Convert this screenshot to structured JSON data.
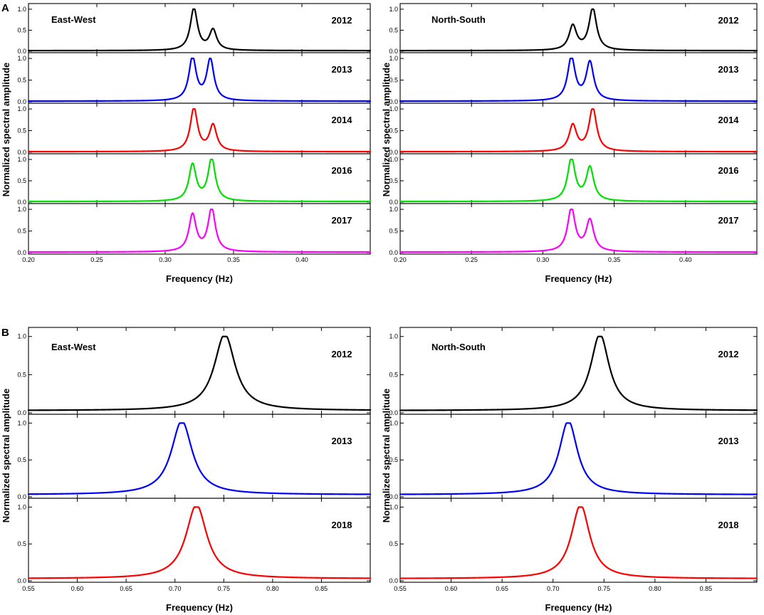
{
  "figure": {
    "panel_labels": [
      "A",
      "B"
    ]
  },
  "chart_data": [
    {
      "type": "line",
      "panel": "A",
      "subplot": "East-West",
      "direction_label": "East-West",
      "xlabel": "Frequency (Hz)",
      "ylabel": "Normalized spectral amplitude",
      "xlim": [
        0.2,
        0.45
      ],
      "ylim": [
        0,
        1.1
      ],
      "x_ticks": [
        0.2,
        0.25,
        0.3,
        0.35,
        0.4
      ],
      "x_tick_labels": [
        "0.20",
        "0.25",
        "0.30",
        "0.35",
        "0.40"
      ],
      "y_ticks": [
        0.0,
        0.5,
        1.0
      ],
      "y_tick_labels": [
        "0.0",
        "0.5",
        "1.0"
      ],
      "series": [
        {
          "name": "2012",
          "color": "#000000",
          "peaks": [
            {
              "f": 0.321,
              "a": 1.0,
              "w": 0.0032
            },
            {
              "f": 0.335,
              "a": 0.48,
              "w": 0.0032
            }
          ]
        },
        {
          "name": "2013",
          "color": "#0000ff",
          "peaks": [
            {
              "f": 0.32,
              "a": 1.0,
              "w": 0.0032
            },
            {
              "f": 0.333,
              "a": 0.95,
              "w": 0.0032
            }
          ]
        },
        {
          "name": "2014",
          "color": "#ff0000",
          "peaks": [
            {
              "f": 0.321,
              "a": 1.0,
              "w": 0.0032
            },
            {
              "f": 0.335,
              "a": 0.6,
              "w": 0.0032
            }
          ]
        },
        {
          "name": "2016",
          "color": "#00e000",
          "peaks": [
            {
              "f": 0.32,
              "a": 0.85,
              "w": 0.0032
            },
            {
              "f": 0.334,
              "a": 1.0,
              "w": 0.0032
            }
          ]
        },
        {
          "name": "2017",
          "color": "#ff00ff",
          "peaks": [
            {
              "f": 0.32,
              "a": 0.85,
              "w": 0.0032
            },
            {
              "f": 0.334,
              "a": 1.0,
              "w": 0.0032
            }
          ]
        }
      ]
    },
    {
      "type": "line",
      "panel": "A",
      "subplot": "North-South",
      "direction_label": "North-South",
      "xlabel": "Frequency (Hz)",
      "ylabel": "Normalized spectral amplitude",
      "xlim": [
        0.2,
        0.45
      ],
      "ylim": [
        0,
        1.1
      ],
      "x_ticks": [
        0.2,
        0.25,
        0.3,
        0.35,
        0.4
      ],
      "x_tick_labels": [
        "0.20",
        "0.25",
        "0.30",
        "0.35",
        "0.40"
      ],
      "y_ticks": [
        0.0,
        0.5,
        1.0
      ],
      "y_tick_labels": [
        "0.0",
        "0.5",
        "1.0"
      ],
      "series": [
        {
          "name": "2012",
          "color": "#000000",
          "peaks": [
            {
              "f": 0.321,
              "a": 0.58,
              "w": 0.0032
            },
            {
              "f": 0.335,
              "a": 1.0,
              "w": 0.0032
            }
          ]
        },
        {
          "name": "2013",
          "color": "#0000ff",
          "peaks": [
            {
              "f": 0.32,
              "a": 1.0,
              "w": 0.0032
            },
            {
              "f": 0.333,
              "a": 0.88,
              "w": 0.0032
            }
          ]
        },
        {
          "name": "2014",
          "color": "#ff0000",
          "peaks": [
            {
              "f": 0.321,
              "a": 0.6,
              "w": 0.0032
            },
            {
              "f": 0.335,
              "a": 1.0,
              "w": 0.0032
            }
          ]
        },
        {
          "name": "2016",
          "color": "#00e000",
          "peaks": [
            {
              "f": 0.32,
              "a": 1.0,
              "w": 0.0032
            },
            {
              "f": 0.333,
              "a": 0.78,
              "w": 0.0032
            }
          ]
        },
        {
          "name": "2017",
          "color": "#ff00ff",
          "peaks": [
            {
              "f": 0.32,
              "a": 1.0,
              "w": 0.0032
            },
            {
              "f": 0.333,
              "a": 0.72,
              "w": 0.0032
            }
          ]
        }
      ]
    },
    {
      "type": "line",
      "panel": "B",
      "subplot": "East-West",
      "direction_label": "East-West",
      "xlabel": "Frequency (Hz)",
      "ylabel": "Normalized spectral amplitude",
      "xlim": [
        0.55,
        0.9
      ],
      "ylim": [
        0,
        1.1
      ],
      "x_ticks": [
        0.55,
        0.6,
        0.65,
        0.7,
        0.75,
        0.8,
        0.85
      ],
      "x_tick_labels": [
        "0.55",
        "0.60",
        "0.65",
        "0.70",
        "0.75",
        "0.80",
        "0.85"
      ],
      "y_ticks": [
        0.0,
        0.5,
        1.0
      ],
      "y_tick_labels": [
        "0.0",
        "0.5",
        "1.0"
      ],
      "series": [
        {
          "name": "2012",
          "color": "#000000",
          "peaks": [
            {
              "f": 0.751,
              "a": 1.0,
              "w": 0.013
            }
          ]
        },
        {
          "name": "2013",
          "color": "#0000ff",
          "peaks": [
            {
              "f": 0.707,
              "a": 1.0,
              "w": 0.013
            }
          ]
        },
        {
          "name": "2018",
          "color": "#ff0000",
          "peaks": [
            {
              "f": 0.722,
              "a": 1.0,
              "w": 0.013
            }
          ]
        }
      ]
    },
    {
      "type": "line",
      "panel": "B",
      "subplot": "North-South",
      "direction_label": "North-South",
      "xlabel": "Frequency (Hz)",
      "ylabel": "Normalized spectral amplitude",
      "xlim": [
        0.55,
        0.9
      ],
      "ylim": [
        0,
        1.1
      ],
      "x_ticks": [
        0.55,
        0.6,
        0.65,
        0.7,
        0.75,
        0.8,
        0.85
      ],
      "x_tick_labels": [
        "0.55",
        "0.60",
        "0.65",
        "0.70",
        "0.75",
        "0.80",
        "0.85"
      ],
      "y_ticks": [
        0.0,
        0.5,
        1.0
      ],
      "y_tick_labels": [
        "0.0",
        "0.5",
        "1.0"
      ],
      "series": [
        {
          "name": "2012",
          "color": "#000000",
          "peaks": [
            {
              "f": 0.746,
              "a": 1.0,
              "w": 0.011
            }
          ]
        },
        {
          "name": "2013",
          "color": "#0000ff",
          "peaks": [
            {
              "f": 0.715,
              "a": 1.0,
              "w": 0.011
            }
          ]
        },
        {
          "name": "2018",
          "color": "#ff0000",
          "peaks": [
            {
              "f": 0.727,
              "a": 1.0,
              "w": 0.011
            }
          ]
        }
      ]
    }
  ]
}
